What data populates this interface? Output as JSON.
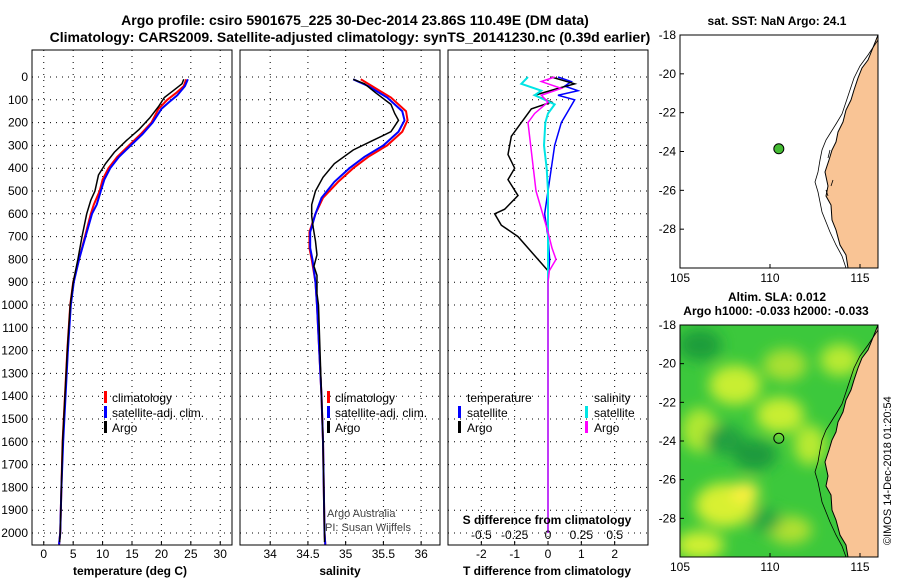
{
  "header": {
    "title_line1": "Argo profile: csiro 5901675_225 30-Dec-2014 23.86S 110.49E (DM data)",
    "title_line2": "Climatology: CARS2009. Satellite-adjusted climatology: synTS_20141230.nc (0.39d earlier)"
  },
  "colors": {
    "climatology": "#ff0000",
    "satellite": "#0000ff",
    "argo": "#000000",
    "sat_salinity": "#00e5e5",
    "argo_salinity": "#ff00ff",
    "land": "#f9c495",
    "marker": "#44bb33"
  },
  "depth_axis": {
    "ticks": [
      "0",
      "100",
      "200",
      "300",
      "400",
      "500",
      "600",
      "700",
      "800",
      "900",
      "1000",
      "1100",
      "1200",
      "1300",
      "1400",
      "1500",
      "1600",
      "1700",
      "1800",
      "1900",
      "2000"
    ]
  },
  "chart_data": [
    {
      "type": "line",
      "title": "",
      "xlabel": "temperature (deg C)",
      "xlim": [
        -2,
        32
      ],
      "ylim": [
        2080,
        -35
      ],
      "x_ticks": [
        "0",
        "5",
        "10",
        "15",
        "20",
        "25",
        "30"
      ],
      "legend": [
        "climatology",
        "satellite-adj. clim.",
        "Argo"
      ],
      "series": [
        {
          "name": "climatology",
          "points": [
            [
              24.2,
              10
            ],
            [
              23.8,
              40
            ],
            [
              22.5,
              70
            ],
            [
              21,
              100
            ],
            [
              19.5,
              140
            ],
            [
              18.3,
              200
            ],
            [
              16.5,
              250
            ],
            [
              14.5,
              300
            ],
            [
              12.5,
              350
            ],
            [
              11,
              400
            ],
            [
              10,
              450
            ],
            [
              9.5,
              500
            ],
            [
              8.5,
              560
            ],
            [
              8,
              600
            ],
            [
              7,
              700
            ],
            [
              6,
              800
            ],
            [
              5,
              900
            ],
            [
              4.5,
              1000
            ],
            [
              4,
              1200
            ],
            [
              3.6,
              1400
            ],
            [
              3.2,
              1600
            ],
            [
              3,
              1800
            ],
            [
              2.8,
              2000
            ],
            [
              2.6,
              2050
            ]
          ]
        },
        {
          "name": "satellite-adj. clim.",
          "points": [
            [
              24.5,
              10
            ],
            [
              24,
              40
            ],
            [
              22.7,
              80
            ],
            [
              21.3,
              110
            ],
            [
              20,
              140
            ],
            [
              18.5,
              200
            ],
            [
              16.8,
              250
            ],
            [
              14.8,
              300
            ],
            [
              12.8,
              350
            ],
            [
              11.3,
              400
            ],
            [
              10.3,
              450
            ],
            [
              9.7,
              500
            ],
            [
              9,
              560
            ],
            [
              8.2,
              600
            ],
            [
              7.1,
              700
            ],
            [
              6,
              800
            ],
            [
              5.1,
              900
            ],
            [
              4.6,
              1000
            ],
            [
              4.1,
              1200
            ],
            [
              3.7,
              1400
            ],
            [
              3.3,
              1600
            ],
            [
              3,
              1800
            ],
            [
              2.8,
              2000
            ],
            [
              2.6,
              2050
            ]
          ]
        },
        {
          "name": "Argo",
          "points": [
            [
              23.8,
              10
            ],
            [
              23.5,
              30
            ],
            [
              22,
              60
            ],
            [
              20.5,
              90
            ],
            [
              19.5,
              130
            ],
            [
              18,
              180
            ],
            [
              16.2,
              230
            ],
            [
              14,
              280
            ],
            [
              12,
              330
            ],
            [
              10.5,
              380
            ],
            [
              9.3,
              430
            ],
            [
              8.7,
              500
            ],
            [
              8,
              540
            ],
            [
              7.3,
              600
            ],
            [
              6.5,
              700
            ],
            [
              5.8,
              800
            ],
            [
              5,
              900
            ],
            [
              4.5,
              1000
            ],
            [
              4,
              1200
            ],
            [
              3.6,
              1400
            ],
            [
              3.2,
              1600
            ],
            [
              3,
              1800
            ],
            [
              2.8,
              2000
            ],
            [
              2.7,
              2040
            ]
          ]
        }
      ]
    },
    {
      "type": "line",
      "title": "",
      "xlabel": "salinity",
      "xlim": [
        33.6,
        36.25
      ],
      "ylim": [
        2080,
        -35
      ],
      "x_ticks": [
        "34",
        "34.5",
        "35",
        "35.5",
        "36"
      ],
      "legend": [
        "climatology",
        "satellite-adj. clim.",
        "Argo"
      ],
      "annotation_lines": [
        "Argo Australia",
        "PI: Susan Wijffels"
      ],
      "series": [
        {
          "name": "climatology",
          "points": [
            [
              35.2,
              10
            ],
            [
              35.35,
              40
            ],
            [
              35.6,
              90
            ],
            [
              35.8,
              150
            ],
            [
              35.82,
              190
            ],
            [
              35.75,
              240
            ],
            [
              35.55,
              300
            ],
            [
              35.3,
              350
            ],
            [
              35.1,
              400
            ],
            [
              34.9,
              460
            ],
            [
              34.7,
              530
            ],
            [
              34.6,
              600
            ],
            [
              34.52,
              680
            ],
            [
              34.52,
              750
            ],
            [
              34.55,
              800
            ],
            [
              34.6,
              900
            ],
            [
              34.62,
              1000
            ],
            [
              34.65,
              1200
            ],
            [
              34.68,
              1400
            ],
            [
              34.7,
              1600
            ],
            [
              34.71,
              1800
            ],
            [
              34.72,
              2000
            ],
            [
              34.73,
              2050
            ]
          ]
        },
        {
          "name": "satellite-adj. clim.",
          "points": [
            [
              35.1,
              10
            ],
            [
              35.3,
              40
            ],
            [
              35.55,
              90
            ],
            [
              35.75,
              150
            ],
            [
              35.78,
              190
            ],
            [
              35.7,
              240
            ],
            [
              35.5,
              300
            ],
            [
              35.25,
              350
            ],
            [
              35.05,
              400
            ],
            [
              34.85,
              460
            ],
            [
              34.68,
              530
            ],
            [
              34.6,
              600
            ],
            [
              34.53,
              680
            ],
            [
              34.53,
              750
            ],
            [
              34.56,
              800
            ],
            [
              34.6,
              900
            ],
            [
              34.62,
              1000
            ],
            [
              34.65,
              1200
            ],
            [
              34.68,
              1400
            ],
            [
              34.7,
              1600
            ],
            [
              34.71,
              1800
            ],
            [
              34.72,
              2000
            ],
            [
              34.73,
              2050
            ]
          ]
        },
        {
          "name": "Argo",
          "points": [
            [
              35.1,
              10
            ],
            [
              35.25,
              30
            ],
            [
              35.4,
              70
            ],
            [
              35.6,
              120
            ],
            [
              35.65,
              160
            ],
            [
              35.7,
              190
            ],
            [
              35.6,
              240
            ],
            [
              35.35,
              280
            ],
            [
              35.1,
              320
            ],
            [
              34.85,
              380
            ],
            [
              34.7,
              440
            ],
            [
              34.6,
              500
            ],
            [
              34.55,
              560
            ],
            [
              34.55,
              610
            ],
            [
              34.57,
              660
            ],
            [
              34.6,
              720
            ],
            [
              34.62,
              780
            ],
            [
              34.58,
              830
            ],
            [
              34.62,
              870
            ],
            [
              34.62,
              950
            ],
            [
              34.64,
              1000
            ],
            [
              34.66,
              1200
            ],
            [
              34.68,
              1400
            ],
            [
              34.7,
              1600
            ],
            [
              34.71,
              1800
            ],
            [
              34.72,
              2000
            ],
            [
              34.72,
              2040
            ]
          ]
        }
      ]
    },
    {
      "type": "line",
      "title": "",
      "xlabel": "T difference from climatology",
      "xlabel2": "S difference from climatology",
      "xlim": [
        -3,
        3
      ],
      "ylim": [
        2080,
        -35
      ],
      "x_ticks": [
        "-2",
        "-1",
        "0",
        "1",
        "2"
      ],
      "x2_ticks": [
        "-0.5",
        "-0.25",
        "0",
        "0.25",
        "0.5"
      ],
      "legend_left_title": "temperature",
      "legend_left": [
        "satellite",
        "Argo"
      ],
      "legend_right_title": "salinity",
      "legend_right": [
        "satellite",
        "Argo"
      ],
      "series": [
        {
          "name": "T satellite",
          "points": [
            [
              0.3,
              0
            ],
            [
              0.7,
              20
            ],
            [
              0.5,
              40
            ],
            [
              0.9,
              60
            ],
            [
              0.3,
              80
            ],
            [
              0.8,
              100
            ],
            [
              0.6,
              150
            ],
            [
              0.4,
              200
            ],
            [
              0.2,
              300
            ],
            [
              0.1,
              400
            ],
            [
              0,
              500
            ],
            [
              -0.1,
              600
            ],
            [
              0,
              700
            ],
            [
              0.05,
              800
            ],
            [
              0,
              900
            ],
            [
              0,
              1000
            ],
            [
              0,
              1200
            ],
            [
              0,
              1400
            ],
            [
              0,
              1600
            ],
            [
              0,
              1800
            ],
            [
              0,
              2000
            ]
          ]
        },
        {
          "name": "T Argo",
          "points": [
            [
              0.1,
              0
            ],
            [
              0.8,
              30
            ],
            [
              0.3,
              50
            ],
            [
              -0.4,
              80
            ],
            [
              0.1,
              110
            ],
            [
              -0.5,
              140
            ],
            [
              -0.8,
              200
            ],
            [
              -1.1,
              260
            ],
            [
              -1.2,
              340
            ],
            [
              -1.0,
              400
            ],
            [
              -1.2,
              450
            ],
            [
              -0.9,
              520
            ],
            [
              -1.3,
              580
            ],
            [
              -1.6,
              600
            ],
            [
              -1.4,
              650
            ],
            [
              -0.9,
              700
            ],
            [
              -0.6,
              750
            ],
            [
              -0.3,
              800
            ],
            [
              0,
              850
            ],
            [
              0,
              900
            ],
            [
              0,
              1000
            ],
            [
              0,
              1200
            ],
            [
              0,
              1400
            ],
            [
              0,
              1600
            ],
            [
              0,
              1800
            ],
            [
              0,
              2000
            ]
          ]
        },
        {
          "name": "S satellite",
          "points": [
            [
              -0.15,
              0
            ],
            [
              -0.2,
              30
            ],
            [
              -0.05,
              60
            ],
            [
              -0.1,
              80
            ],
            [
              0.05,
              120
            ],
            [
              0.0,
              160
            ],
            [
              -0.02,
              200
            ],
            [
              -0.03,
              300
            ],
            [
              -0.01,
              400
            ],
            [
              0,
              500
            ],
            [
              0,
              600
            ],
            [
              0,
              700
            ],
            [
              0,
              800
            ],
            [
              0,
              1000
            ],
            [
              0,
              1400
            ],
            [
              0,
              1800
            ],
            [
              0,
              2000
            ]
          ]
        },
        {
          "name": "S Argo",
          "points": [
            [
              0.05,
              0
            ],
            [
              -0.05,
              20
            ],
            [
              0.1,
              50
            ],
            [
              -0.05,
              80
            ],
            [
              0.0,
              110
            ],
            [
              -0.1,
              160
            ],
            [
              -0.15,
              200
            ],
            [
              -0.13,
              300
            ],
            [
              -0.11,
              400
            ],
            [
              -0.09,
              500
            ],
            [
              -0.05,
              580
            ],
            [
              -0.03,
              620
            ],
            [
              0,
              680
            ],
            [
              0.03,
              750
            ],
            [
              0.06,
              800
            ],
            [
              0.01,
              850
            ],
            [
              0,
              900
            ],
            [
              0,
              1000
            ],
            [
              0,
              1400
            ],
            [
              0,
              1800
            ],
            [
              0,
              2000
            ]
          ]
        }
      ]
    },
    {
      "type": "scatter",
      "title": "sat. SST: NaN Argo: 24.1",
      "x_ticks": [
        "105",
        "110",
        "115"
      ],
      "y_ticks": [
        "-18",
        "-20",
        "-22",
        "-24",
        "-26",
        "-28"
      ],
      "xlim": [
        105,
        116
      ],
      "ylim": [
        -30,
        -18
      ],
      "points": [
        [
          110.49,
          -23.86
        ]
      ]
    },
    {
      "type": "heatmap",
      "title": "Altim. SLA: 0.012",
      "subtitle": "Argo h1000: -0.033 h2000: -0.033",
      "x_ticks": [
        "105",
        "110",
        "115"
      ],
      "y_ticks": [
        "-18",
        "-20",
        "-22",
        "-24",
        "-26",
        "-28"
      ],
      "xlim": [
        105,
        116
      ],
      "ylim": [
        -30,
        -18
      ],
      "points": [
        [
          110.49,
          -23.86
        ]
      ]
    }
  ],
  "footer": {
    "credit": "©IMOS 14-Dec-2018 01:20:54"
  }
}
